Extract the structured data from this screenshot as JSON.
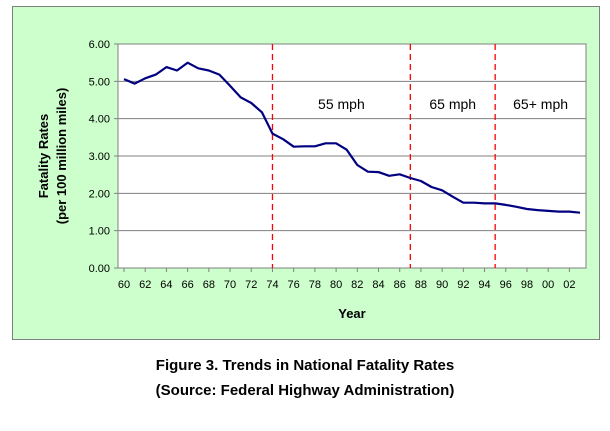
{
  "chart_data": {
    "type": "line",
    "xlabel": "Year",
    "ylabel_lines": [
      "Fatality Rates",
      "(per 100 million miles)"
    ],
    "ylim": [
      0,
      6
    ],
    "yticks": [
      "0.00",
      "1.00",
      "2.00",
      "3.00",
      "4.00",
      "5.00",
      "6.00"
    ],
    "xlim": [
      1960,
      2003
    ],
    "xticks": [
      "60",
      "62",
      "64",
      "66",
      "68",
      "70",
      "72",
      "74",
      "76",
      "78",
      "80",
      "82",
      "84",
      "86",
      "88",
      "90",
      "92",
      "94",
      "96",
      "98",
      "00",
      "02"
    ],
    "grid": "horizontal",
    "line_color": "#000080",
    "marker_color": "#ff0000",
    "series": [
      {
        "x": [
          1960,
          1961,
          1962,
          1963,
          1964,
          1965,
          1966,
          1967,
          1968,
          1969,
          1970,
          1971,
          1972,
          1973,
          1974,
          1975,
          1976,
          1977,
          1978,
          1979,
          1980,
          1981,
          1982,
          1983,
          1984,
          1985,
          1986,
          1987,
          1988,
          1989,
          1990,
          1991,
          1992,
          1993,
          1994,
          1995,
          1996,
          1997,
          1998,
          1999,
          2000,
          2001,
          2002,
          2003
        ],
        "y": [
          5.06,
          4.94,
          5.08,
          5.18,
          5.38,
          5.29,
          5.5,
          5.35,
          5.29,
          5.18,
          4.88,
          4.57,
          4.42,
          4.17,
          3.6,
          3.45,
          3.25,
          3.26,
          3.26,
          3.34,
          3.34,
          3.17,
          2.76,
          2.58,
          2.57,
          2.47,
          2.51,
          2.41,
          2.33,
          2.17,
          2.08,
          1.91,
          1.75,
          1.75,
          1.73,
          1.73,
          1.69,
          1.64,
          1.58,
          1.55,
          1.53,
          1.51,
          1.51,
          1.48
        ]
      }
    ],
    "markers": [
      {
        "x": 1974,
        "label": "55 mph"
      },
      {
        "x": 1987,
        "label": "65 mph"
      },
      {
        "x": 1995,
        "label": "65+ mph"
      }
    ]
  },
  "caption": {
    "title": "Figure 3. Trends in National Fatality Rates",
    "source": "(Source: Federal Highway Administration)"
  }
}
